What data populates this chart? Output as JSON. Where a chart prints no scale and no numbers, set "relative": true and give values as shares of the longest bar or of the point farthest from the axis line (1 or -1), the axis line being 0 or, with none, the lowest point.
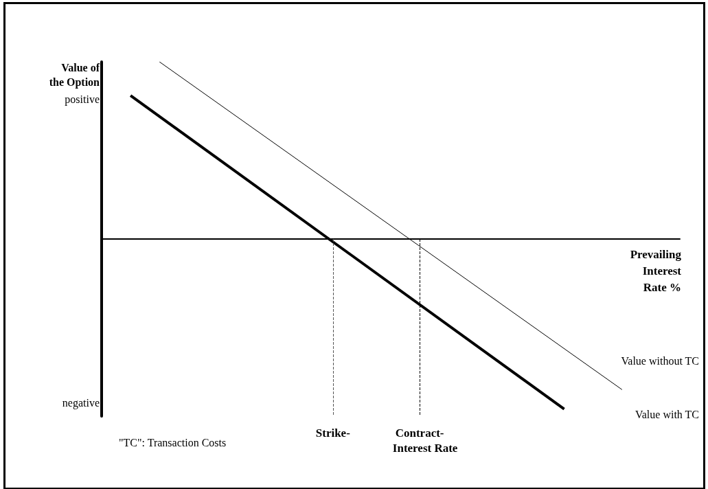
{
  "chart_data": {
    "type": "line",
    "relative": true,
    "ylabel": "Value of\nthe Option",
    "xlabel": "Prevailing\nInterest\nRate %",
    "categories": [
      null,
      null,
      null,
      null,
      null,
      null,
      null,
      null,
      "Strike-",
      null,
      null,
      "Contract-",
      null,
      null,
      null,
      null,
      null,
      null,
      null,
      null,
      null
    ],
    "tick_labels": "x",
    "grid": false,
    "legend": false,
    "marker": "none",
    "series": [
      {
        "name": "Value without TC",
        "color": "#000000",
        "values": [
          null,
          null,
          1,
          null,
          null,
          null,
          null,
          null,
          null,
          null,
          null,
          null,
          null,
          null,
          null,
          null,
          null,
          null,
          -0.85,
          null,
          null
        ]
      },
      {
        "name": "Value with TC",
        "color": "#000000",
        "values": [
          null,
          0.81,
          null,
          null,
          null,
          null,
          null,
          null,
          null,
          null,
          null,
          null,
          null,
          null,
          null,
          null,
          -0.96,
          null,
          null,
          null,
          null
        ]
      }
    ],
    "ref_lines": [
      {
        "axis": "x",
        "value": "Strike-",
        "color": "#555555",
        "line_style": "dashed"
      },
      {
        "axis": "x",
        "value": "Contract-",
        "color": "#000000",
        "line_style": "dashed"
      }
    ],
    "annotations": [
      "positive",
      "negative",
      "\"TC\": Transaction Costs",
      "Interest Rate"
    ]
  }
}
